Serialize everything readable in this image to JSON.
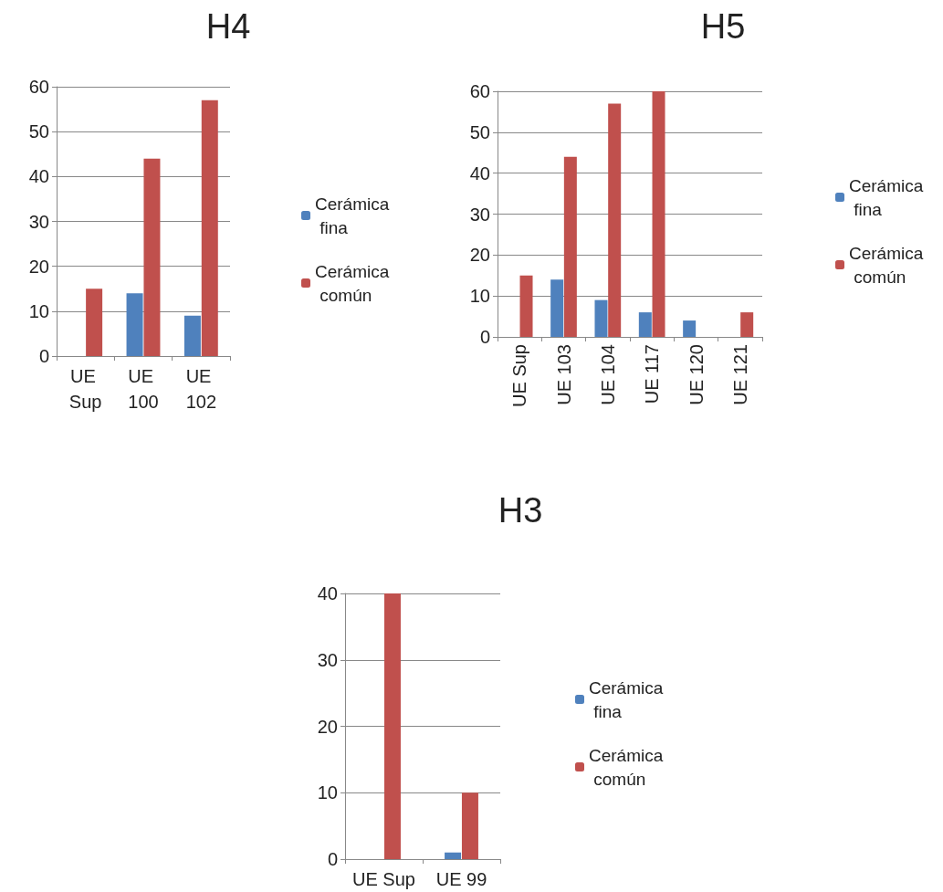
{
  "chart_data": [
    {
      "type": "bar",
      "title": "H4",
      "categories": [
        "UE Sup",
        "UE 100",
        "UE 102"
      ],
      "series": [
        {
          "name": "Cerámica fina",
          "color": "#4f81bd",
          "values": [
            0,
            14,
            9
          ]
        },
        {
          "name": "Cerámica común",
          "color": "#c0504d",
          "values": [
            15,
            44,
            57
          ]
        }
      ],
      "ylim": [
        0,
        60
      ],
      "yticks": [
        0,
        10,
        20,
        30,
        40,
        50,
        60
      ],
      "grid": "y",
      "legend": "right"
    },
    {
      "type": "bar",
      "title": "H5",
      "categories": [
        "UE Sup",
        "UE 103",
        "UE 104",
        "UE 117",
        "UE 120",
        "UE 121"
      ],
      "series": [
        {
          "name": "Cerámica fina",
          "color": "#4f81bd",
          "values": [
            0,
            14,
            9,
            6,
            4,
            0
          ]
        },
        {
          "name": "Cerámica común",
          "color": "#c0504d",
          "values": [
            15,
            44,
            57,
            60,
            0,
            6
          ]
        }
      ],
      "ylim": [
        0,
        60
      ],
      "yticks": [
        0,
        10,
        20,
        30,
        40,
        50,
        60
      ],
      "grid": "y",
      "legend": "right"
    },
    {
      "type": "bar",
      "title": "H3",
      "categories": [
        "UE Sup",
        "UE 99"
      ],
      "series": [
        {
          "name": "Cerámica fina",
          "color": "#4f81bd",
          "values": [
            0,
            1
          ]
        },
        {
          "name": "Cerámica común",
          "color": "#c0504d",
          "values": [
            40,
            10
          ]
        }
      ],
      "ylim": [
        0,
        40
      ],
      "yticks": [
        0,
        10,
        20,
        30,
        40
      ],
      "grid": "y",
      "legend": "right"
    }
  ]
}
